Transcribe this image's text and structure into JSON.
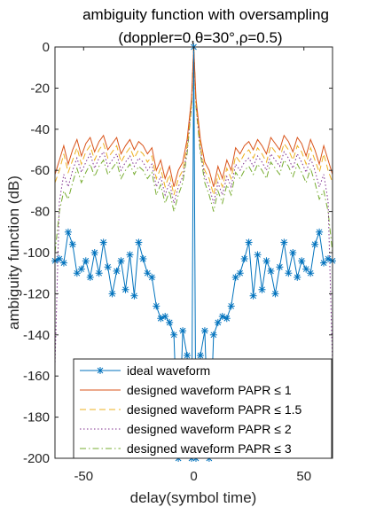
{
  "chart_data": {
    "type": "line",
    "title": "ambiguity function with oversampling",
    "subtitle": "(doppler=0,θ=30°,ρ=0.5)",
    "xlabel": "delay(symbol time)",
    "ylabel": "ambiguity function (dB)",
    "xlim": [
      -63,
      63
    ],
    "ylim": [
      -200,
      0
    ],
    "xticks": [
      -50,
      0,
      50
    ],
    "yticks": [
      0,
      -20,
      -40,
      -60,
      -80,
      -100,
      -120,
      -140,
      -160,
      -180,
      -200
    ],
    "grid": false,
    "legend_position": "bottom",
    "series": [
      {
        "name": "ideal waveform",
        "color": "#0072BD",
        "style": "solid-star",
        "x": [
          -63,
          -61,
          -59,
          -57,
          -55,
          -53,
          -51,
          -49,
          -47,
          -45,
          -43,
          -41,
          -39,
          -37,
          -35,
          -33,
          -31,
          -29,
          -27,
          -25,
          -23,
          -21,
          -19,
          -17,
          -15,
          -13,
          -11,
          -9,
          -7,
          -5,
          -3,
          -1,
          0,
          1,
          3,
          5,
          7,
          9,
          11,
          13,
          15,
          17,
          19,
          21,
          23,
          25,
          27,
          29,
          31,
          33,
          35,
          37,
          39,
          41,
          43,
          45,
          47,
          49,
          51,
          53,
          55,
          57,
          59,
          61,
          63
        ],
        "values": [
          -104,
          -103,
          -105,
          -90,
          -96,
          -110,
          -108,
          -104,
          -112,
          -100,
          -110,
          -95,
          -107,
          -120,
          -109,
          -104,
          -118,
          -101,
          -121,
          -95,
          -103,
          -110,
          -112,
          -126,
          -132,
          -131,
          -134,
          -140,
          -205,
          -138,
          -150,
          -200,
          0,
          -200,
          -150,
          -138,
          -205,
          -140,
          -134,
          -131,
          -132,
          -126,
          -112,
          -110,
          -103,
          -95,
          -121,
          -101,
          -118,
          -104,
          -109,
          -120,
          -107,
          -95,
          -110,
          -100,
          -112,
          -104,
          -108,
          -110,
          -96,
          -90,
          -105,
          -103,
          -104
        ]
      },
      {
        "name": "designed waveform PAPR ≤ 1",
        "color": "#D95319",
        "style": "solid",
        "x": [
          -63,
          -61,
          -59,
          -57,
          -55,
          -53,
          -51,
          -49,
          -47,
          -45,
          -43,
          -41,
          -39,
          -37,
          -35,
          -33,
          -31,
          -29,
          -27,
          -25,
          -23,
          -21,
          -19,
          -17,
          -15,
          -13,
          -11,
          -9,
          -7,
          -5,
          -3,
          -1,
          0,
          1,
          3,
          5,
          7,
          9,
          11,
          13,
          15,
          17,
          19,
          21,
          23,
          25,
          27,
          29,
          31,
          33,
          35,
          37,
          39,
          41,
          43,
          45,
          47,
          49,
          51,
          53,
          55,
          57,
          59,
          61,
          63
        ],
        "values": [
          -62,
          -55,
          -48,
          -57,
          -50,
          -45,
          -53,
          -47,
          -44,
          -51,
          -46,
          -43,
          -50,
          -47,
          -44,
          -52,
          -48,
          -45,
          -50,
          -46,
          -48,
          -52,
          -49,
          -60,
          -55,
          -64,
          -58,
          -68,
          -60,
          -56,
          -45,
          -25,
          0,
          -25,
          -45,
          -56,
          -60,
          -68,
          -58,
          -64,
          -55,
          -60,
          -49,
          -52,
          -48,
          -46,
          -50,
          -45,
          -48,
          -52,
          -44,
          -47,
          -50,
          -43,
          -46,
          -51,
          -44,
          -47,
          -53,
          -45,
          -50,
          -57,
          -48,
          -55,
          -62
        ]
      },
      {
        "name": "designed waveform PAPR ≤ 1.5",
        "color": "#EDB120",
        "style": "dashed",
        "x": [
          -63,
          -61,
          -59,
          -57,
          -55,
          -53,
          -51,
          -49,
          -47,
          -45,
          -43,
          -41,
          -39,
          -37,
          -35,
          -33,
          -31,
          -29,
          -27,
          -25,
          -23,
          -21,
          -19,
          -17,
          -15,
          -13,
          -11,
          -9,
          -7,
          -5,
          -3,
          -1,
          0,
          1,
          3,
          5,
          7,
          9,
          11,
          13,
          15,
          17,
          19,
          21,
          23,
          25,
          27,
          29,
          31,
          33,
          35,
          37,
          39,
          41,
          43,
          45,
          47,
          49,
          51,
          53,
          55,
          57,
          59,
          61,
          63
        ],
        "values": [
          -66,
          -60,
          -52,
          -61,
          -55,
          -49,
          -57,
          -51,
          -48,
          -55,
          -50,
          -47,
          -54,
          -51,
          -48,
          -56,
          -52,
          -49,
          -54,
          -50,
          -52,
          -56,
          -53,
          -64,
          -59,
          -68,
          -62,
          -72,
          -64,
          -60,
          -48,
          -27,
          0,
          -27,
          -48,
          -60,
          -64,
          -72,
          -62,
          -68,
          -59,
          -64,
          -53,
          -56,
          -52,
          -50,
          -54,
          -49,
          -52,
          -56,
          -48,
          -51,
          -54,
          -47,
          -50,
          -55,
          -48,
          -51,
          -57,
          -49,
          -55,
          -61,
          -52,
          -60,
          -66
        ]
      },
      {
        "name": "designed waveform PAPR ≤ 2",
        "color": "#7E2F8E",
        "style": "dotted",
        "x": [
          -63,
          -61,
          -59,
          -57,
          -55,
          -53,
          -51,
          -49,
          -47,
          -45,
          -43,
          -41,
          -39,
          -37,
          -35,
          -33,
          -31,
          -29,
          -27,
          -25,
          -23,
          -21,
          -19,
          -17,
          -15,
          -13,
          -11,
          -9,
          -7,
          -5,
          -3,
          -1,
          0,
          1,
          3,
          5,
          7,
          9,
          11,
          13,
          15,
          17,
          19,
          21,
          23,
          25,
          27,
          29,
          31,
          33,
          35,
          37,
          39,
          41,
          43,
          45,
          47,
          49,
          51,
          53,
          55,
          57,
          59,
          61,
          63
        ],
        "values": [
          -155,
          -75,
          -62,
          -68,
          -60,
          -54,
          -61,
          -56,
          -52,
          -59,
          -54,
          -51,
          -58,
          -55,
          -52,
          -60,
          -56,
          -53,
          -58,
          -54,
          -56,
          -60,
          -57,
          -68,
          -63,
          -72,
          -66,
          -76,
          -68,
          -63,
          -50,
          -28,
          0,
          -28,
          -50,
          -63,
          -68,
          -76,
          -66,
          -72,
          -63,
          -68,
          -57,
          -60,
          -56,
          -54,
          -58,
          -53,
          -56,
          -60,
          -52,
          -55,
          -58,
          -51,
          -54,
          -59,
          -52,
          -56,
          -61,
          -54,
          -60,
          -68,
          -62,
          -75,
          -155
        ]
      },
      {
        "name": "designed waveform PAPR ≤ 3",
        "color": "#77AC30",
        "style": "dashdot",
        "x": [
          -63,
          -61,
          -59,
          -57,
          -55,
          -53,
          -51,
          -49,
          -47,
          -45,
          -43,
          -41,
          -39,
          -37,
          -35,
          -33,
          -31,
          -29,
          -27,
          -25,
          -23,
          -21,
          -19,
          -17,
          -15,
          -13,
          -11,
          -9,
          -7,
          -5,
          -3,
          -1,
          0,
          1,
          3,
          5,
          7,
          9,
          11,
          13,
          15,
          17,
          19,
          21,
          23,
          25,
          27,
          29,
          31,
          33,
          35,
          37,
          39,
          41,
          43,
          45,
          47,
          49,
          51,
          53,
          55,
          57,
          59,
          61,
          63
        ],
        "values": [
          -100,
          -80,
          -70,
          -74,
          -66,
          -59,
          -66,
          -61,
          -57,
          -63,
          -58,
          -55,
          -62,
          -59,
          -56,
          -64,
          -60,
          -57,
          -62,
          -58,
          -60,
          -64,
          -61,
          -72,
          -67,
          -76,
          -70,
          -80,
          -72,
          -66,
          -52,
          -29,
          0,
          -29,
          -52,
          -66,
          -72,
          -80,
          -70,
          -76,
          -67,
          -72,
          -61,
          -64,
          -60,
          -58,
          -62,
          -57,
          -60,
          -64,
          -56,
          -59,
          -62,
          -55,
          -58,
          -63,
          -57,
          -61,
          -66,
          -59,
          -66,
          -74,
          -70,
          -80,
          -100
        ]
      }
    ],
    "legend": [
      "ideal waveform",
      "designed waveform PAPR ≤ 1",
      "designed waveform PAPR ≤ 1.5",
      "designed waveform PAPR ≤ 2",
      "designed waveform PAPR ≤ 3"
    ]
  }
}
